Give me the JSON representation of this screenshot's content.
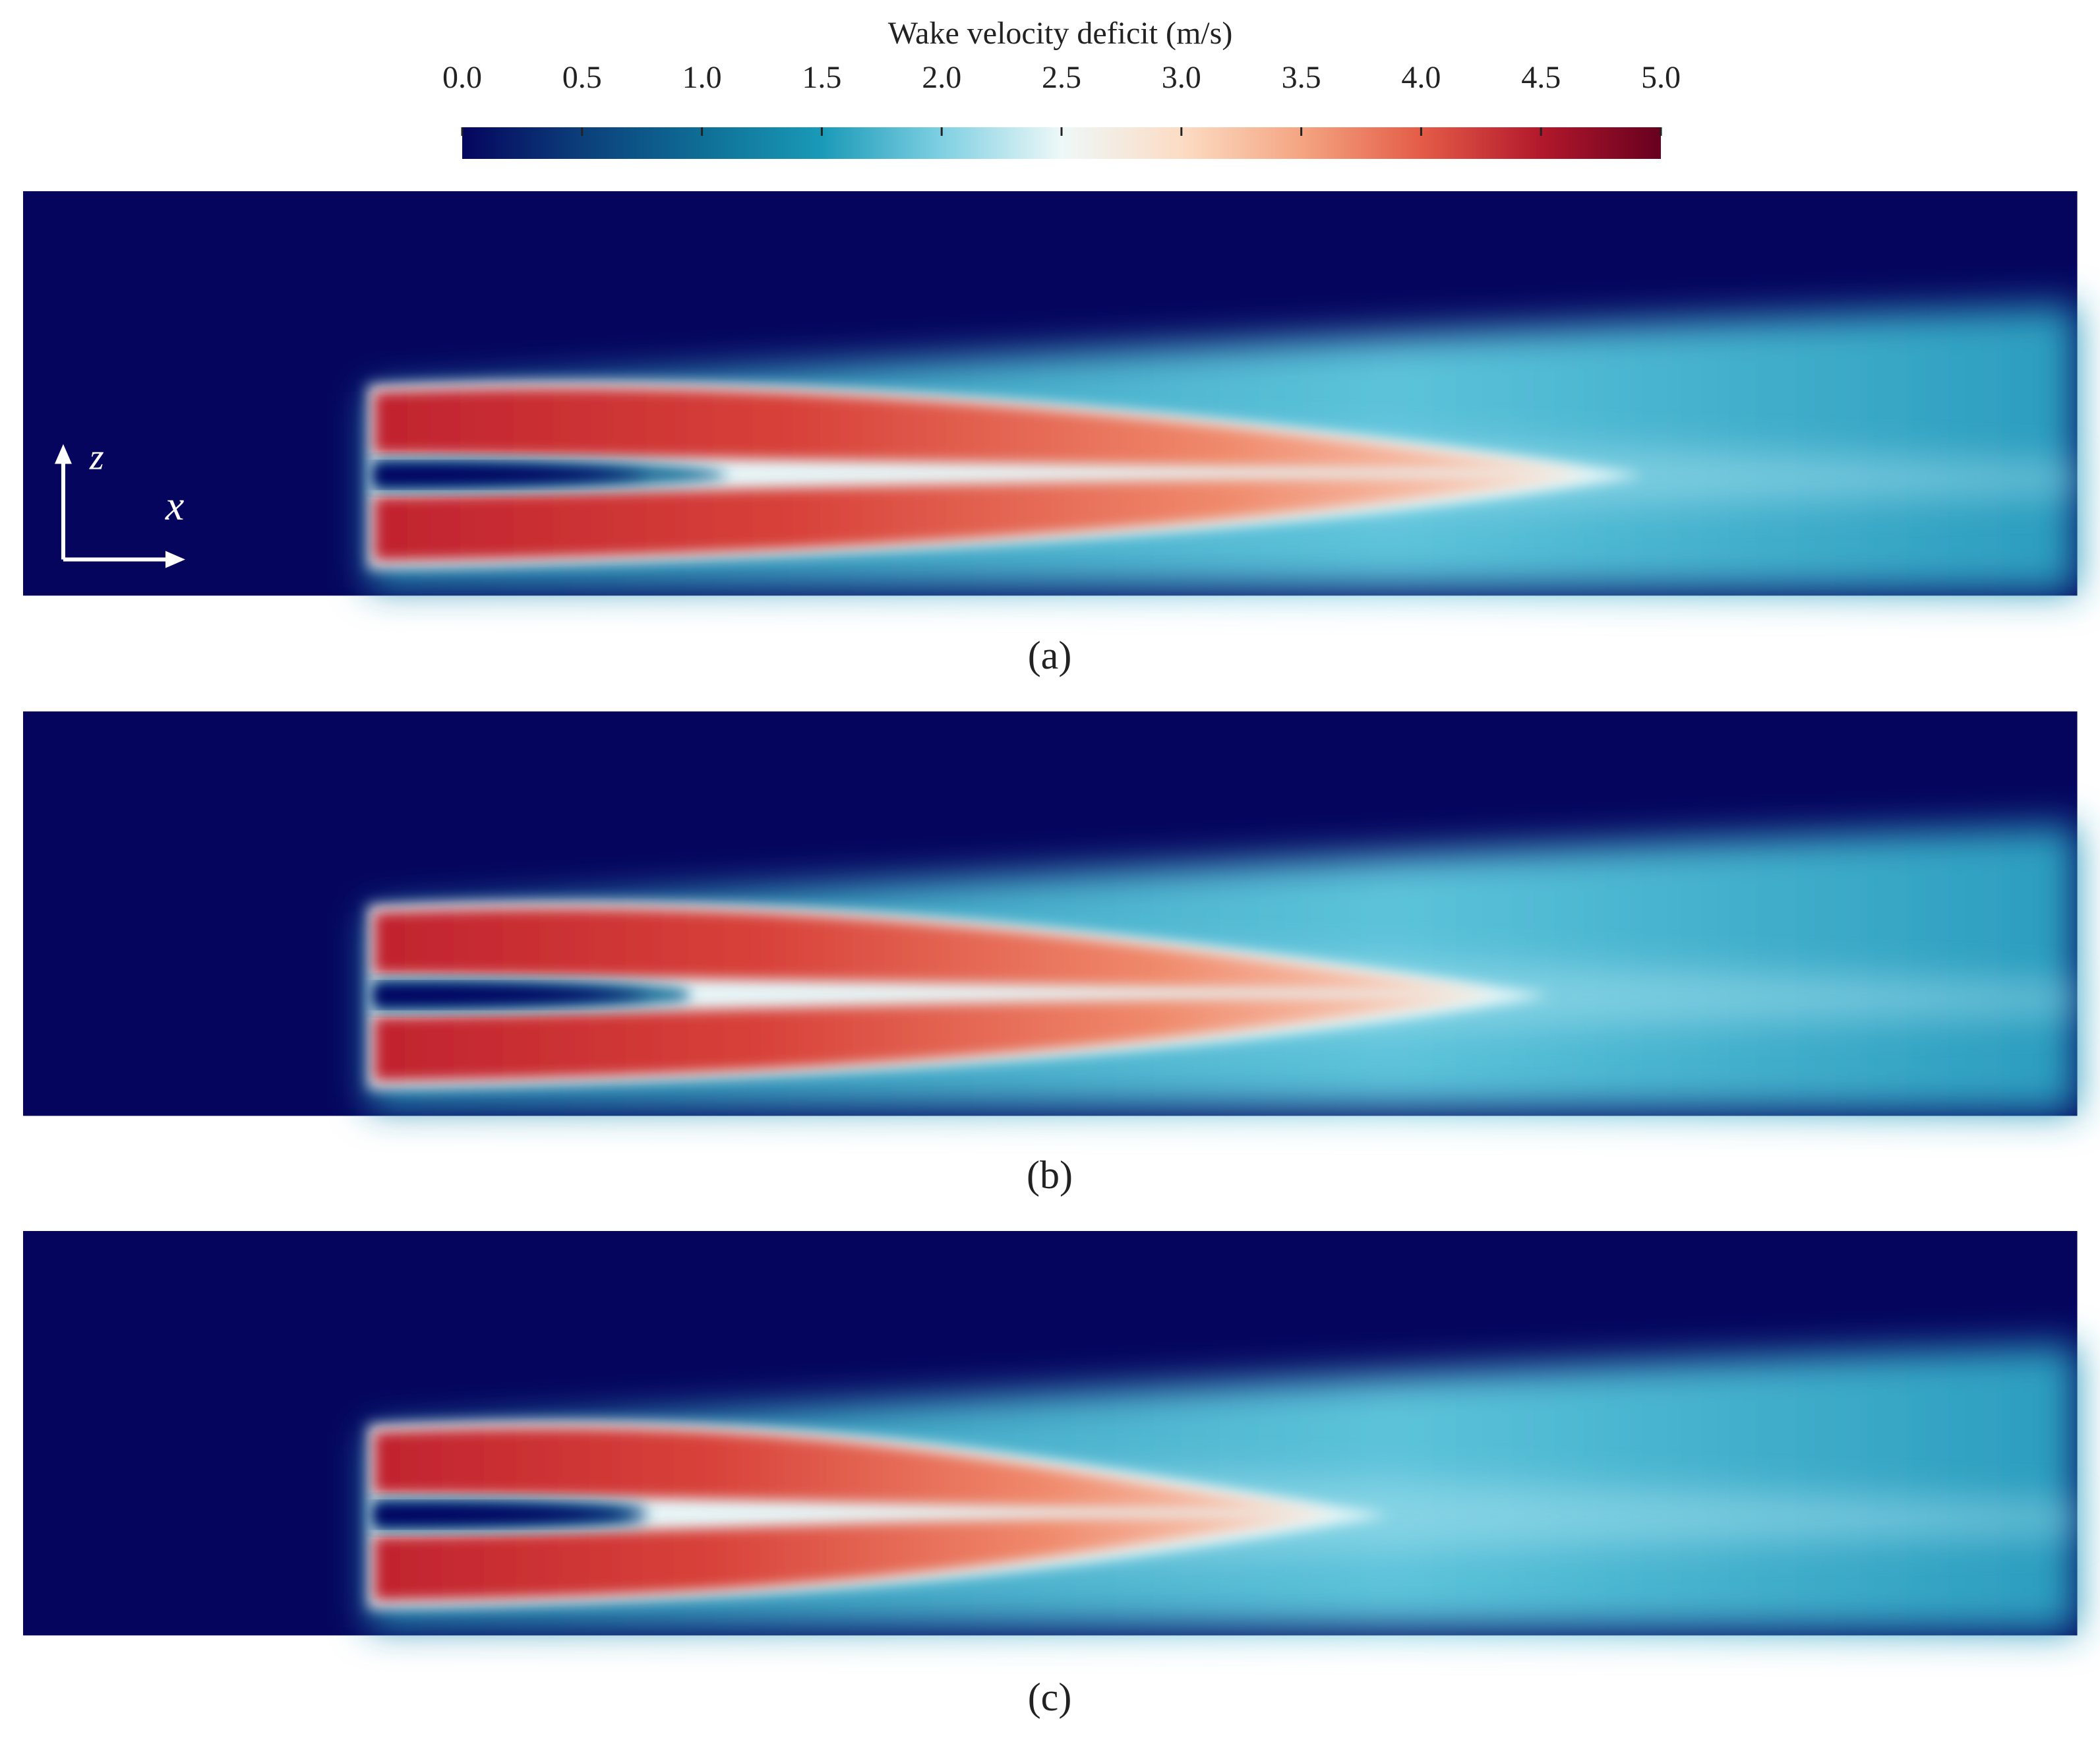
{
  "chart_data": {
    "type": "colorbar",
    "title": "Wake velocity deficit (m/s)",
    "xlim": [
      0,
      5
    ],
    "xticks": [
      {
        "value": 0,
        "label": "0.0"
      },
      0.5,
      {
        "value": 1,
        "label": "1.0"
      },
      1.5,
      {
        "value": 2,
        "label": "2.0"
      },
      2.5,
      {
        "value": 3,
        "label": "3.0"
      },
      3.5,
      {
        "value": 4,
        "label": "4.0"
      },
      4.5,
      {
        "value": 5,
        "label": "5.0"
      }
    ],
    "colormap": [
      "#05055e",
      "#0b3f7a",
      "#0e6e96",
      "#1a9ab8",
      "#7fd0e2",
      "#eef8f8",
      "#fcdcc4",
      "#f4a582",
      "#e45c47",
      "#b2182b",
      "#67001f"
    ],
    "panel_labels": [
      "(a)",
      "(b)",
      "(c)"
    ],
    "axis_glyph": {
      "z": "z",
      "x": "x"
    }
  }
}
